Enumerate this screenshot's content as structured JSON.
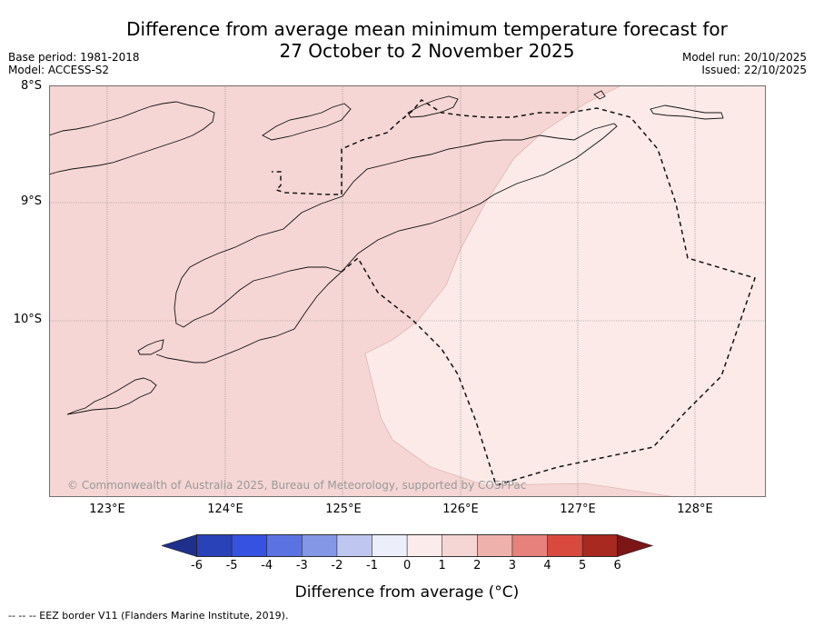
{
  "title": {
    "line1": "Difference from average mean minimum temperature forecast for",
    "line2": "27 October to 2 November 2025"
  },
  "meta": {
    "base_period": "Base period: 1981-2018",
    "model": "Model: ACCESS-S2",
    "model_run": "Model run: 20/10/2025",
    "issued": "Issued: 22/10/2025"
  },
  "map": {
    "latitude_labels": [
      "8°S",
      "9°S",
      "10°S"
    ],
    "longitude_labels": [
      "123°E",
      "124°E",
      "125°E",
      "126°E",
      "127°E",
      "128°E"
    ],
    "copyright": "© Commonwealth of Australia 2025, Bureau of Meteorology, supported by COSPPac",
    "fill_colors": {
      "category_1_to_2": "#f5d6d4",
      "category_0_to_1": "#fbeae8"
    }
  },
  "colorbar": {
    "title": "Difference from average (°C)",
    "ticks": [
      "-6",
      "-5",
      "-4",
      "-3",
      "-2",
      "-1",
      "0",
      "1",
      "2",
      "3",
      "4",
      "5",
      "6"
    ],
    "colors": [
      "#1f2f8c",
      "#2a42b8",
      "#3553e0",
      "#5a72e2",
      "#8496e6",
      "#bfc7f0",
      "#eceef9",
      "#fbeceb",
      "#f5d6d4",
      "#efb1ac",
      "#e6827b",
      "#d94a3e",
      "#a8291f",
      "#7a1616"
    ]
  },
  "footnote": "--  --  -- EEZ border V11 (Flanders Marine Institute, 2019)."
}
